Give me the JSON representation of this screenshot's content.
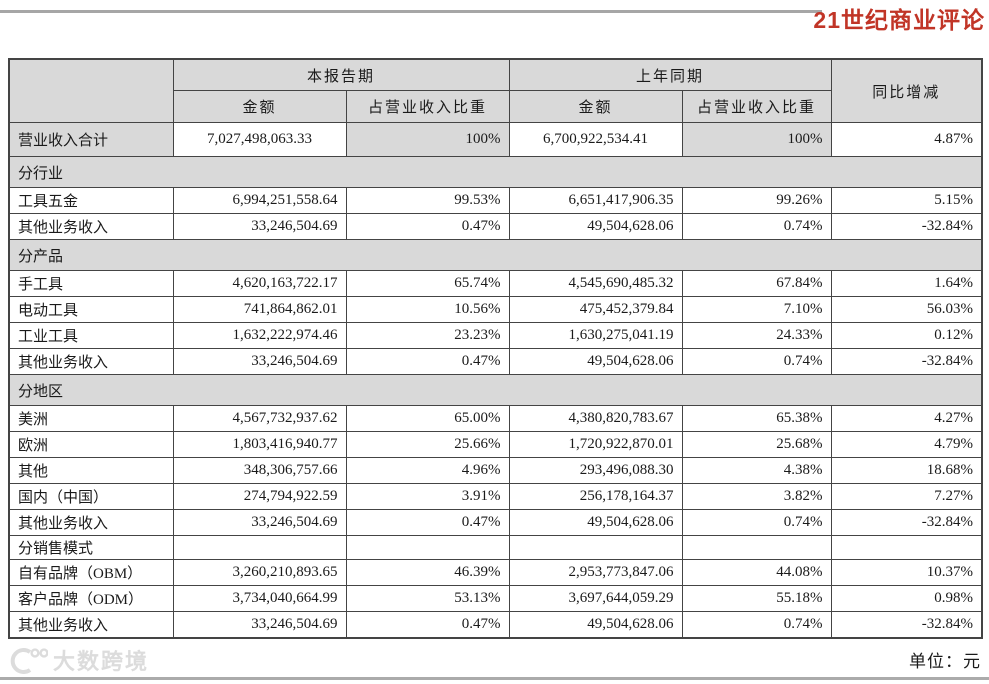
{
  "page": {
    "masthead": "21世纪商业评论",
    "unit_note": "单位：元",
    "watermark_text": "大数跨境"
  },
  "colors": {
    "brand_red": "#c13527",
    "header_fill": "#d9d9d9",
    "rule_gray": "#a6a6a6",
    "border": "#444444"
  },
  "table": {
    "header": {
      "current_period": "本报告期",
      "prior_period": "上年同期",
      "yoy_change": "同比增减",
      "amount_current": "金额",
      "share_current": "占营业收入比重",
      "amount_prior": "金额",
      "share_prior": "占营业收入比重"
    },
    "rows": [
      {
        "type": "total",
        "cells": [
          "营业收入合计",
          "7,027,498,063.33",
          "100%",
          "6,700,922,534.41",
          "100%",
          "4.87%"
        ]
      },
      {
        "type": "section",
        "cells": [
          "分行业",
          "",
          "",
          "",
          "",
          ""
        ]
      },
      {
        "type": "data",
        "cells": [
          "工具五金",
          "6,994,251,558.64",
          "99.53%",
          "6,651,417,906.35",
          "99.26%",
          "5.15%"
        ]
      },
      {
        "type": "data",
        "cells": [
          "其他业务收入",
          "33,246,504.69",
          "0.47%",
          "49,504,628.06",
          "0.74%",
          "-32.84%"
        ]
      },
      {
        "type": "section",
        "cells": [
          "分产品",
          "",
          "",
          "",
          "",
          ""
        ]
      },
      {
        "type": "data",
        "cells": [
          "手工具",
          "4,620,163,722.17",
          "65.74%",
          "4,545,690,485.32",
          "67.84%",
          "1.64%"
        ]
      },
      {
        "type": "data",
        "cells": [
          "电动工具",
          "741,864,862.01",
          "10.56%",
          "475,452,379.84",
          "7.10%",
          "56.03%"
        ]
      },
      {
        "type": "data",
        "cells": [
          "工业工具",
          "1,632,222,974.46",
          "23.23%",
          "1,630,275,041.19",
          "24.33%",
          "0.12%"
        ]
      },
      {
        "type": "data",
        "cells": [
          "其他业务收入",
          "33,246,504.69",
          "0.47%",
          "49,504,628.06",
          "0.74%",
          "-32.84%"
        ]
      },
      {
        "type": "section",
        "cells": [
          "分地区",
          "",
          "",
          "",
          "",
          ""
        ]
      },
      {
        "type": "data",
        "cells": [
          "美洲",
          "4,567,732,937.62",
          "65.00%",
          "4,380,820,783.67",
          "65.38%",
          "4.27%"
        ]
      },
      {
        "type": "data",
        "cells": [
          "欧洲",
          "1,803,416,940.77",
          "25.66%",
          "1,720,922,870.01",
          "25.68%",
          "4.79%"
        ]
      },
      {
        "type": "data",
        "cells": [
          "其他",
          "348,306,757.66",
          "4.96%",
          "293,496,088.30",
          "4.38%",
          "18.68%"
        ]
      },
      {
        "type": "data",
        "cells": [
          "国内（中国）",
          "274,794,922.59",
          "3.91%",
          "256,178,164.37",
          "3.82%",
          "7.27%"
        ]
      },
      {
        "type": "data",
        "cells": [
          "其他业务收入",
          "33,246,504.69",
          "0.47%",
          "49,504,628.06",
          "0.74%",
          "-32.84%"
        ]
      },
      {
        "type": "section2",
        "cells": [
          "分销售模式",
          "",
          "",
          "",
          "",
          ""
        ]
      },
      {
        "type": "data",
        "cells": [
          "自有品牌（OBM）",
          "3,260,210,893.65",
          "46.39%",
          "2,953,773,847.06",
          "44.08%",
          "10.37%"
        ]
      },
      {
        "type": "data",
        "cells": [
          "客户品牌（ODM）",
          "3,734,040,664.99",
          "53.13%",
          "3,697,644,059.29",
          "55.18%",
          "0.98%"
        ]
      },
      {
        "type": "data",
        "cells": [
          "其他业务收入",
          "33,246,504.69",
          "0.47%",
          "49,504,628.06",
          "0.74%",
          "-32.84%"
        ]
      }
    ]
  }
}
